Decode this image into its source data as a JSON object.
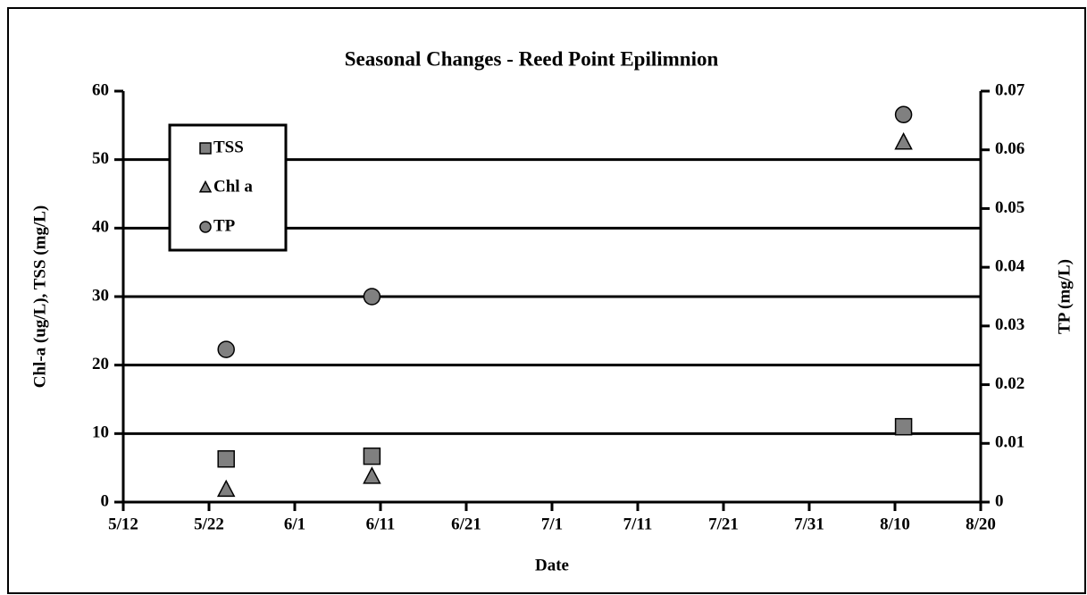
{
  "chart_data": {
    "type": "scatter",
    "title": "Seasonal Changes - Reed Point Epilimnion",
    "xlabel": "Date",
    "ylabel": "Chl-a (ug/L), TSS (mg/L)",
    "y2label": "TP (mg/L)",
    "x": [
      144,
      161,
      223
    ],
    "xlim": [
      132,
      232
    ],
    "xticks": [
      {
        "value": 132,
        "label": "5/12"
      },
      {
        "value": 142,
        "label": "5/22"
      },
      {
        "value": 152,
        "label": "6/1"
      },
      {
        "value": 162,
        "label": "6/11"
      },
      {
        "value": 172,
        "label": "6/21"
      },
      {
        "value": 182,
        "label": "7/1"
      },
      {
        "value": 192,
        "label": "7/11"
      },
      {
        "value": 202,
        "label": "7/21"
      },
      {
        "value": 212,
        "label": "7/31"
      },
      {
        "value": 222,
        "label": "8/10"
      },
      {
        "value": 232,
        "label": "8/20"
      }
    ],
    "ylim": [
      0,
      60
    ],
    "yticks": [
      0,
      10,
      20,
      30,
      40,
      50,
      60
    ],
    "y2lim": [
      0,
      0.07
    ],
    "y2ticks": [
      0,
      0.01,
      0.02,
      0.03,
      0.04,
      0.05,
      0.06,
      0.07
    ],
    "grid": true,
    "legend": "upper left",
    "series": [
      {
        "name": "TSS",
        "color": "#808080",
        "marker": "square",
        "values": [
          6.3,
          6.7,
          11
        ]
      },
      {
        "name": "Chl a",
        "color": "#808080",
        "marker": "triangle",
        "values": [
          1.8,
          3.7,
          52.5
        ]
      },
      {
        "name": "TP",
        "color": "#808080",
        "marker": "circle",
        "axis": "y2",
        "values": [
          0.026,
          0.035,
          0.066
        ]
      }
    ]
  }
}
